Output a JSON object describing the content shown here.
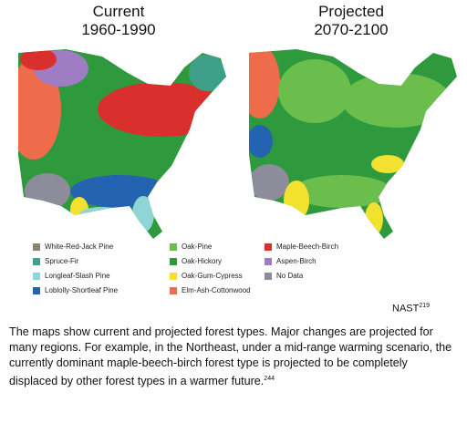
{
  "maps": [
    {
      "title": "Current",
      "subtitle": "1960-1990"
    },
    {
      "title": "Projected",
      "subtitle": "2070-2100"
    }
  ],
  "legend": [
    {
      "name": "White-Red-Jack Pine",
      "color": "#8c8370"
    },
    {
      "name": "Spruce-Fir",
      "color": "#3fa089"
    },
    {
      "name": "Longleaf-Slash Pine",
      "color": "#8fd5d6"
    },
    {
      "name": "Loblolly-Shortleaf Pine",
      "color": "#2463b0"
    },
    {
      "name": "Oak-Pine",
      "color": "#6bbd4c"
    },
    {
      "name": "Oak-Hickory",
      "color": "#2e9a3d"
    },
    {
      "name": "Oak-Gum-Cypress",
      "color": "#f2e12e"
    },
    {
      "name": "Elm-Ash-Cottonwood",
      "color": "#ee6b4b"
    },
    {
      "name": "Maple-Beech-Birch",
      "color": "#d9302d"
    },
    {
      "name": "Aspen-Birch",
      "color": "#a07cc4"
    },
    {
      "name": "No Data",
      "color": "#8c8c9a"
    }
  ],
  "source": {
    "text": "NAST",
    "ref": "219"
  },
  "caption": {
    "text": "The maps show current and projected forest types. Major changes are projected for many regions. For example, in the Northeast, under a mid-range warming scenario, the currently dominant maple-beech-birch forest type is projected to be completely displaced by other forest types in a warmer future.",
    "ref": "244"
  }
}
